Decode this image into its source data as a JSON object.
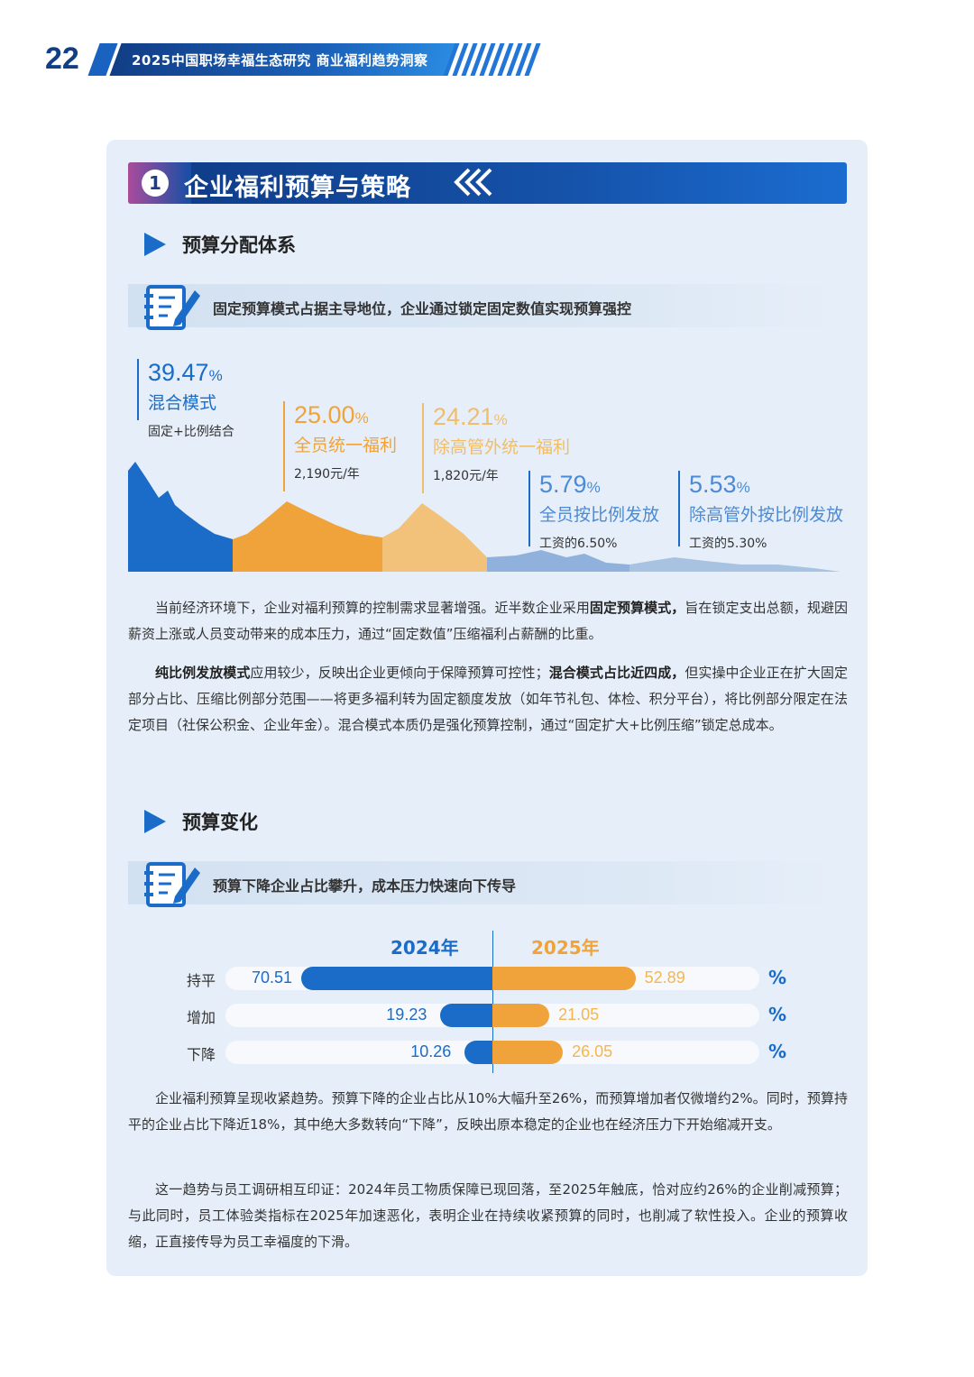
{
  "header": {
    "page_number": "22",
    "title": "2025中国职场幸福生态研究 商业福利趋势洞察"
  },
  "section": {
    "number": "1",
    "title": "企业福利预算与策略",
    "chevrons": "«‹"
  },
  "part1": {
    "subtitle": "预算分配体系",
    "note": "固定预算模式占据主导地位，企业通过锁定固定数值实现预算强控",
    "stats": [
      {
        "pct": "39.47",
        "unit": "%",
        "label": "混合模式",
        "sub": "固定+比例结合",
        "color": "#1a6cc8"
      },
      {
        "pct": "25.00",
        "unit": "%",
        "label": "全员统一福利",
        "sub": "2,190元/年",
        "color": "#f0a33a"
      },
      {
        "pct": "24.21",
        "unit": "%",
        "label": "除高管外统一福利",
        "sub": "1,820元/年",
        "color": "#f0bd6a"
      },
      {
        "pct": "5.79",
        "unit": "%",
        "label": "全员按比例发放",
        "sub": "工资的6.50%",
        "color": "#4a8ad6"
      },
      {
        "pct": "5.53",
        "unit": "%",
        "label": "除高管外按比例发放",
        "sub": "工资的5.30%",
        "color": "#4a8ad6"
      }
    ],
    "para1_a": "当前经济环境下，企业对福利预算的控制需求显著增强。近半数企业采用",
    "para1_b": "固定预算模式，",
    "para1_c": "旨在锁定支出总额，规避因薪资上涨或人员变动带来的成本压力，通过“固定数值”压缩福利占薪酬的比重。",
    "para2_a": "纯比例发放模式",
    "para2_b": "应用较少，反映出企业更倾向于保障预算可控性；",
    "para2_c": "混合模式占比近四成，",
    "para2_d": "但实操中企业正在扩大固定部分占比、压缩比例部分范围——将更多福利转为固定额度发放（如年节礼包、体检、积分平台），将比例部分限定在法定项目（社保公积金、企业年金）。混合模式本质仍是强化预算控制，通过“固定扩大+比例压缩”锁定总成本。"
  },
  "part2": {
    "subtitle": "预算变化",
    "note": "预算下降企业占比攀升，成本压力快速向下传导",
    "para3": "企业福利预算呈现收紧趋势。预算下降的企业占比从10%大幅升至26%，而预算增加者仅微增约2%。同时，预算持平的企业占比下降近18%，其中绝大多数转向“下降”，反映出原本稳定的企业也在经济压力下开始缩减开支。",
    "para4": "这一趋势与员工调研相互印证：2024年员工物质保障已现回落，至2025年触底，恰对应约26%的企业削减预算；与此同时，员工体验类指标在2025年加速恶化，表明企业在持续收紧预算的同时，也削减了软性投入。企业的预算收缩，正直接传导为员工幸福度的下滑。"
  },
  "chart_data": {
    "type": "bar",
    "orientation": "horizontal-butterfly",
    "categories": [
      "持平",
      "增加",
      "下降"
    ],
    "series": [
      {
        "name": "2024年",
        "values": [
          70.51,
          19.23,
          10.26
        ],
        "color": "#1a6cc8"
      },
      {
        "name": "2025年",
        "values": [
          52.89,
          21.05,
          26.05
        ],
        "color": "#f0a33a"
      }
    ],
    "value_labels_left": [
      "70.51",
      "19.23",
      "10.26"
    ],
    "value_labels_right": [
      "52.89",
      "21.05",
      "26.05"
    ],
    "unit": "%",
    "xlim": [
      0,
      100
    ]
  }
}
